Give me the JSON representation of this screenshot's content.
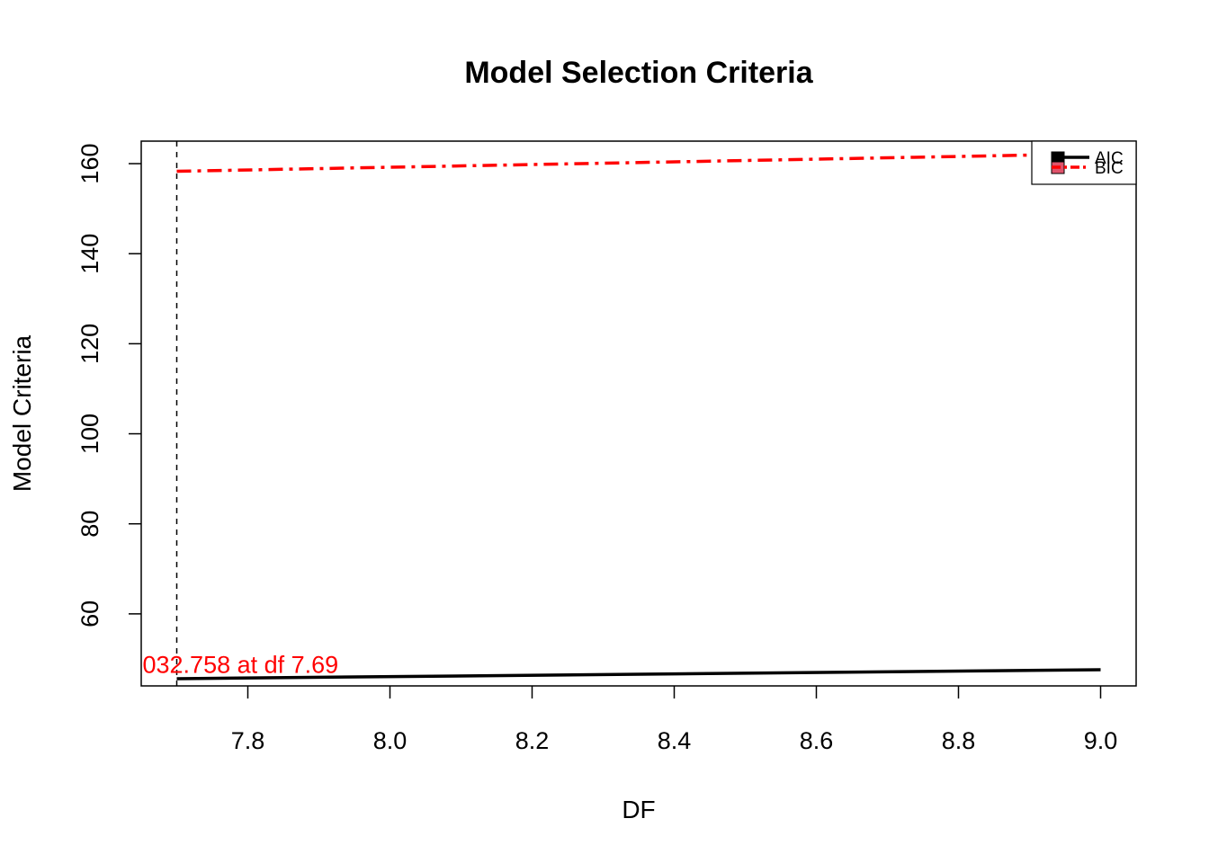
{
  "chart_data": {
    "type": "line",
    "title": "Model Selection Criteria",
    "xlabel": "DF",
    "ylabel": "Model Criteria",
    "xlim": [
      7.65,
      9.05
    ],
    "ylim": [
      44,
      165
    ],
    "x_ticks": [
      7.8,
      8.0,
      8.2,
      8.4,
      8.6,
      8.8,
      9.0
    ],
    "x_tick_labels": [
      "7.8",
      "8.0",
      "8.2",
      "8.4",
      "8.6",
      "8.8",
      "9.0"
    ],
    "y_ticks": [
      60,
      80,
      100,
      120,
      140,
      160
    ],
    "y_tick_labels": [
      "60",
      "80",
      "100",
      "120",
      "140",
      "160"
    ],
    "series": [
      {
        "name": "AIC",
        "color": "#000000",
        "style": "solid",
        "x": [
          7.7,
          9.0
        ],
        "y": [
          45.6,
          47.6
        ]
      },
      {
        "name": "BIC",
        "color": "#ff0000",
        "style": "dashdot",
        "x": [
          7.7,
          9.0
        ],
        "y": [
          158.3,
          162.2
        ]
      }
    ],
    "vline": {
      "x": 7.7,
      "color": "#000000",
      "style": "dashed"
    },
    "annotation": {
      "text": "032.758 at df 7.69",
      "color": "#ff0000",
      "x": 7.7,
      "y": 49.5
    },
    "legend": {
      "placement": "top-right",
      "entries": [
        "AIC",
        "BIC"
      ]
    },
    "grid": false
  }
}
